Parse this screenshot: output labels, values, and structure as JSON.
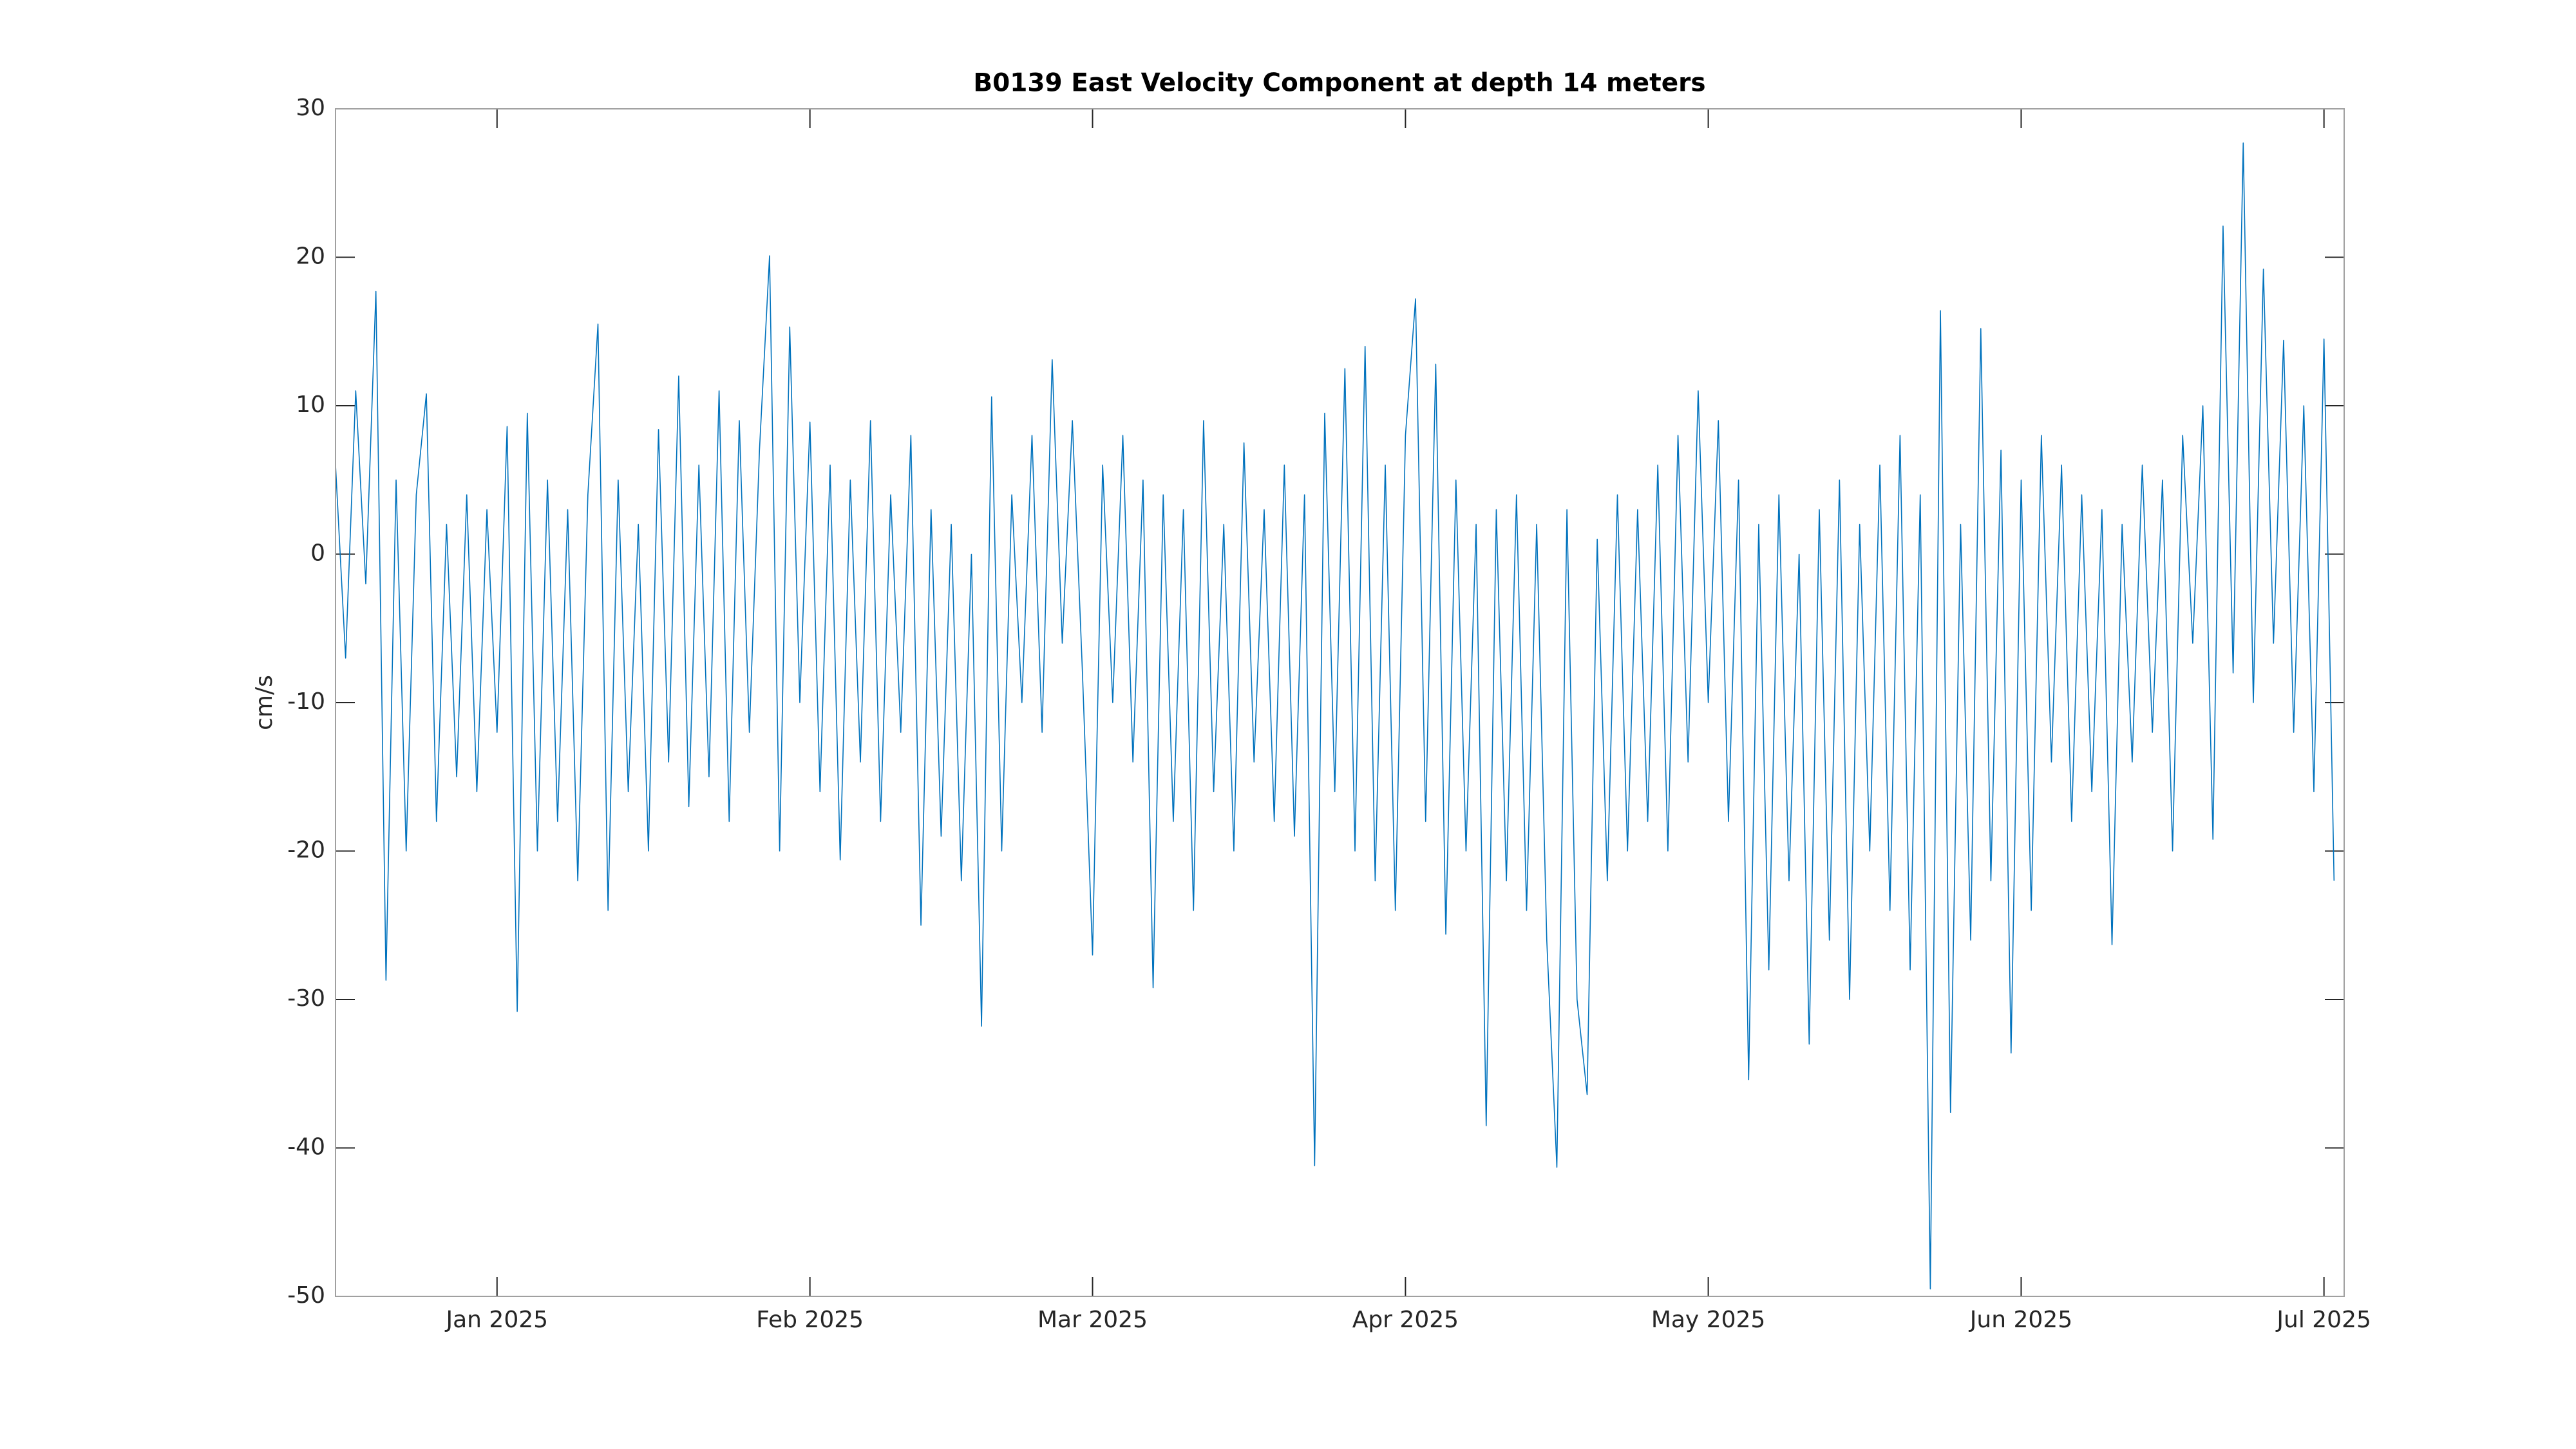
{
  "chart_data": {
    "type": "line",
    "title": "B0139 East Velocity Component at depth 14 meters",
    "ylabel": "cm/s",
    "color": "#0072bd",
    "x": [
      "2024-12-16",
      "2024-12-17",
      "2024-12-18",
      "2024-12-19",
      "2024-12-20",
      "2024-12-21",
      "2024-12-22",
      "2024-12-23",
      "2024-12-24",
      "2024-12-25",
      "2024-12-26",
      "2024-12-27",
      "2024-12-28",
      "2024-12-29",
      "2024-12-30",
      "2024-12-31",
      "2025-01-01",
      "2025-01-02",
      "2025-01-03",
      "2025-01-04",
      "2025-01-05",
      "2025-01-06",
      "2025-01-07",
      "2025-01-08",
      "2025-01-09",
      "2025-01-10",
      "2025-01-11",
      "2025-01-12",
      "2025-01-13",
      "2025-01-14",
      "2025-01-15",
      "2025-01-16",
      "2025-01-17",
      "2025-01-18",
      "2025-01-19",
      "2025-01-20",
      "2025-01-21",
      "2025-01-22",
      "2025-01-23",
      "2025-01-24",
      "2025-01-25",
      "2025-01-26",
      "2025-01-27",
      "2025-01-28",
      "2025-01-29",
      "2025-01-30",
      "2025-01-31",
      "2025-02-01",
      "2025-02-02",
      "2025-02-03",
      "2025-02-04",
      "2025-02-05",
      "2025-02-06",
      "2025-02-07",
      "2025-02-08",
      "2025-02-09",
      "2025-02-10",
      "2025-02-11",
      "2025-02-12",
      "2025-02-13",
      "2025-02-14",
      "2025-02-15",
      "2025-02-16",
      "2025-02-17",
      "2025-02-18",
      "2025-02-19",
      "2025-02-20",
      "2025-02-21",
      "2025-02-22",
      "2025-02-23",
      "2025-02-24",
      "2025-02-25",
      "2025-02-26",
      "2025-02-27",
      "2025-02-28",
      "2025-03-01",
      "2025-03-02",
      "2025-03-03",
      "2025-03-04",
      "2025-03-05",
      "2025-03-06",
      "2025-03-07",
      "2025-03-08",
      "2025-03-09",
      "2025-03-10",
      "2025-03-11",
      "2025-03-12",
      "2025-03-13",
      "2025-03-14",
      "2025-03-15",
      "2025-03-16",
      "2025-03-17",
      "2025-03-18",
      "2025-03-19",
      "2025-03-20",
      "2025-03-21",
      "2025-03-22",
      "2025-03-23",
      "2025-03-24",
      "2025-03-25",
      "2025-03-26",
      "2025-03-27",
      "2025-03-28",
      "2025-03-29",
      "2025-03-30",
      "2025-03-31",
      "2025-04-01",
      "2025-04-02",
      "2025-04-03",
      "2025-04-04",
      "2025-04-05",
      "2025-04-06",
      "2025-04-07",
      "2025-04-08",
      "2025-04-09",
      "2025-04-10",
      "2025-04-11",
      "2025-04-12",
      "2025-04-13",
      "2025-04-14",
      "2025-04-15",
      "2025-04-16",
      "2025-04-17",
      "2025-04-18",
      "2025-04-19",
      "2025-04-20",
      "2025-04-21",
      "2025-04-22",
      "2025-04-23",
      "2025-04-24",
      "2025-04-25",
      "2025-04-26",
      "2025-04-27",
      "2025-04-28",
      "2025-04-29",
      "2025-04-30",
      "2025-05-01",
      "2025-05-02",
      "2025-05-03",
      "2025-05-04",
      "2025-05-05",
      "2025-05-06",
      "2025-05-07",
      "2025-05-08",
      "2025-05-09",
      "2025-05-10",
      "2025-05-11",
      "2025-05-12",
      "2025-05-13",
      "2025-05-14",
      "2025-05-15",
      "2025-05-16",
      "2025-05-17",
      "2025-05-18",
      "2025-05-19",
      "2025-05-20",
      "2025-05-21",
      "2025-05-22",
      "2025-05-23",
      "2025-05-24",
      "2025-05-25",
      "2025-05-26",
      "2025-05-27",
      "2025-05-28",
      "2025-05-29",
      "2025-05-30",
      "2025-05-31",
      "2025-06-01",
      "2025-06-02",
      "2025-06-03",
      "2025-06-04",
      "2025-06-05",
      "2025-06-06",
      "2025-06-07",
      "2025-06-08",
      "2025-06-09",
      "2025-06-10",
      "2025-06-11",
      "2025-06-12",
      "2025-06-13",
      "2025-06-14",
      "2025-06-15",
      "2025-06-16",
      "2025-06-17",
      "2025-06-18",
      "2025-06-19",
      "2025-06-20",
      "2025-06-21",
      "2025-06-22",
      "2025-06-23",
      "2025-06-24",
      "2025-06-25",
      "2025-06-26",
      "2025-06-27",
      "2025-06-28",
      "2025-06-29",
      "2025-06-30",
      "2025-07-01",
      "2025-07-02"
    ],
    "values": [
      6,
      -7,
      11,
      -2,
      17.7,
      -28.7,
      5,
      -20,
      4,
      10.8,
      -18,
      2,
      -15,
      4,
      -16,
      3,
      -12,
      8.6,
      -30.8,
      9.5,
      -20,
      5,
      -18,
      3,
      -22,
      4,
      15.5,
      -24,
      5,
      -16,
      2,
      -20,
      8.4,
      -14,
      12,
      -17,
      6,
      -15,
      11,
      -18,
      9,
      -12,
      7,
      20.1,
      -20,
      15.3,
      -10,
      8.9,
      -16,
      6,
      -20.6,
      5,
      -14,
      9,
      -18,
      4,
      -12,
      8,
      -25,
      3,
      -19,
      2,
      -22,
      0,
      -31.8,
      10.6,
      -20,
      4,
      -10,
      8,
      -12,
      13.1,
      -6,
      9,
      -8,
      -27,
      6,
      -10,
      8,
      -14,
      5,
      -29.2,
      4,
      -18,
      3,
      -24,
      9,
      -16,
      2,
      -20,
      7.5,
      -14,
      3,
      -18,
      6,
      -19,
      4,
      -41.2,
      9.5,
      -16,
      12.5,
      -20,
      14,
      -22,
      6,
      -24,
      8,
      17.2,
      -18,
      12.8,
      -25.6,
      5,
      -20,
      2,
      -38.5,
      3,
      -22,
      4,
      -24,
      2,
      -26,
      -41.3,
      3,
      -30,
      -36.4,
      1,
      -22,
      4,
      -20,
      3,
      -18,
      6,
      -20,
      8,
      -14,
      11,
      -10,
      9,
      -18,
      5,
      -35.4,
      2,
      -28,
      4,
      -22,
      0,
      -33,
      3,
      -26,
      5,
      -30,
      2,
      -20,
      6,
      -24,
      8,
      -28,
      4,
      -49.5,
      16.4,
      -37.6,
      2,
      -26,
      15.2,
      -22,
      7,
      -33.6,
      5,
      -24,
      8,
      -14,
      6,
      -18,
      4,
      -16,
      3,
      -26.3,
      2,
      -14,
      6,
      -12,
      5,
      -20,
      8,
      -6,
      10,
      -19.2,
      22.1,
      -8,
      27.7,
      -10,
      19.2,
      -6,
      14.4,
      -12,
      10,
      -16,
      14.5,
      -22
    ],
    "xlim": [
      "2024-12-16",
      "2025-07-03"
    ],
    "xticks": [
      {
        "value": "2025-01-01",
        "label": "Jan 2025"
      },
      {
        "value": "2025-02-01",
        "label": "Feb 2025"
      },
      {
        "value": "2025-03-01",
        "label": "Mar 2025"
      },
      {
        "value": "2025-04-01",
        "label": "Apr 2025"
      },
      {
        "value": "2025-05-01",
        "label": "May 2025"
      },
      {
        "value": "2025-06-01",
        "label": "Jun 2025"
      },
      {
        "value": "2025-07-01",
        "label": "Jul 2025"
      }
    ],
    "ylim": [
      -50,
      30
    ],
    "yticks": [
      -50,
      -40,
      -30,
      -20,
      -10,
      0,
      10,
      20,
      30
    ],
    "grid": false
  }
}
